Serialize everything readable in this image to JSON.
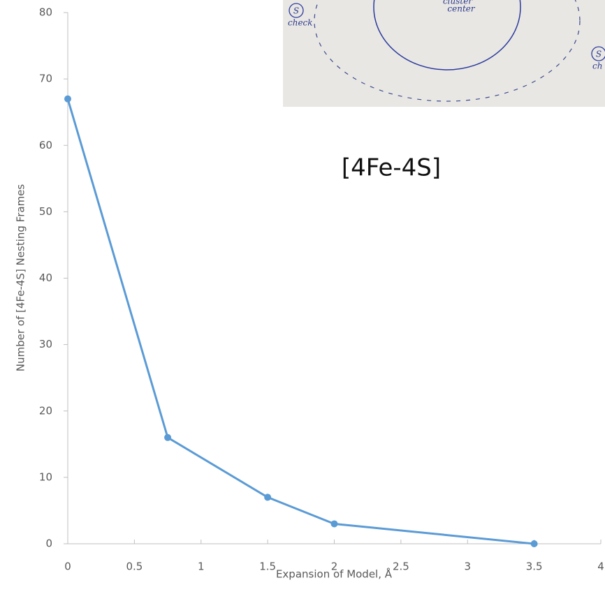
{
  "chart_data": {
    "type": "line",
    "title": "[4Fe-4S]",
    "x_label": "Expansion of Model, Å",
    "y_label": "Number of [4Fe-4S] Nesting Frames",
    "x": [
      0,
      0.75,
      1.5,
      2,
      3.5
    ],
    "series": [
      {
        "name": "[4Fe-4S]",
        "color": "#5b9bd5",
        "values": [
          67,
          16,
          7,
          3,
          0
        ]
      }
    ],
    "xlim": [
      0,
      4
    ],
    "xticks": [
      0,
      0.5,
      1,
      1.5,
      2,
      2.5,
      3,
      3.5,
      4
    ],
    "ylim": [
      0,
      80
    ],
    "yticks": [
      0,
      10,
      20,
      30,
      40,
      50,
      60,
      70,
      80
    ],
    "grid": false,
    "inset_texts": [
      "S",
      "check",
      "cluster",
      "center",
      "S",
      "ch"
    ]
  }
}
